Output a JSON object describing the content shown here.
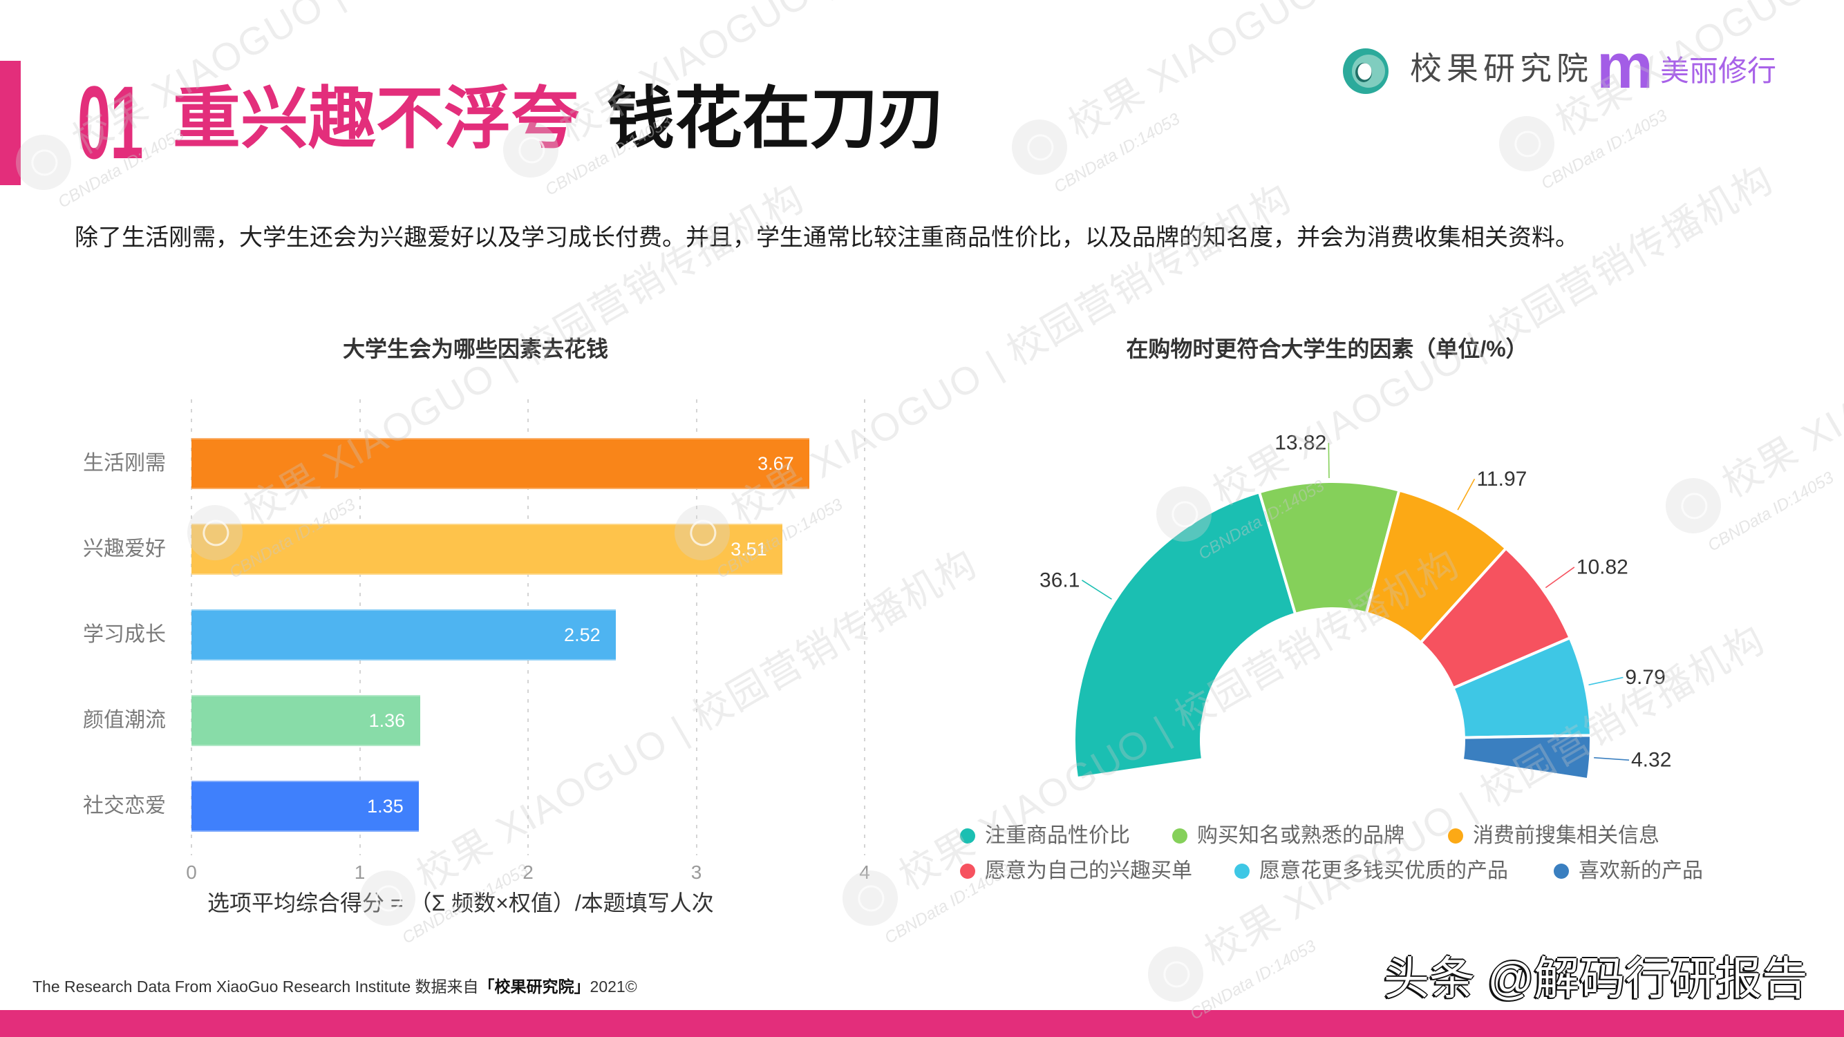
{
  "slide": {
    "section_number": "01",
    "title_highlight": "重兴趣不浮夸",
    "title_main": "钱花在刀刃",
    "description": "除了生活刚需，大学生还会为兴趣爱好以及学习成长付费。并且，学生通常比较注重商品性价比，以及品牌的知名度，并会为消费收集相关资料。"
  },
  "logo": {
    "icon": "xiaoguo-ring-logo-icon",
    "org_name": "校果研究院",
    "partner_mark": "m",
    "partner_name": "美丽修行"
  },
  "footer": {
    "source_prefix": "The Research Data From XiaoGuo Research Institute 数据来自",
    "source_org": "「校果研究院」",
    "source_suffix": "2021©",
    "platform_watermark": "头条 @解码行研报告"
  },
  "watermarks": {
    "brand_line": "校果 XIAOGUO | 校园营销传播机构",
    "id_text": "CBNData ID:14053"
  },
  "colors": {
    "accent_pink": "#E32E7B",
    "title_black": "#111111",
    "logo_teal": "#2BAA9B",
    "partner_purple": "#A35DE6"
  },
  "chart_data": [
    {
      "type": "bar",
      "orientation": "horizontal",
      "title": "大学生会为哪些因素去花钱",
      "categories": [
        "生活刚需",
        "兴趣爱好",
        "学习成长",
        "颜值潮流",
        "社交恋爱"
      ],
      "values": [
        3.67,
        3.51,
        2.52,
        1.36,
        1.35
      ],
      "colors": [
        "#F98519",
        "#FEC34B",
        "#4EB4F1",
        "#88DCA8",
        "#3F80FC"
      ],
      "xlabel": "",
      "ylabel": "",
      "xlim": [
        0,
        4
      ],
      "x_ticks": [
        0,
        1,
        2,
        3,
        4
      ],
      "grid": "vertical dashed",
      "data_labels": "inside-end",
      "legend": null,
      "note": "选项平均综合得分 = （Σ 频数×权值）/本题填写人次"
    },
    {
      "type": "pie",
      "variant": "donut (partial arc, opening at bottom)",
      "title": "在购物时更符合大学生的因素（单位/%）",
      "categories": [
        "注重商品性价比",
        "购买知名或熟悉的品牌",
        "消费前搜集相关信息",
        "愿意为自己的兴趣买单",
        "愿意花更多钱买优质的产品",
        "喜欢新的产品"
      ],
      "values": [
        36.1,
        13.82,
        11.97,
        10.82,
        9.79,
        4.32
      ],
      "colors": [
        "#1BBFB2",
        "#85D05A",
        "#FCA915",
        "#F6525F",
        "#3EC7E5",
        "#3A7FC0"
      ],
      "unit": "%",
      "legend_position": "bottom",
      "data_labels": "outside with leader lines",
      "start_angle_deg": 188.5,
      "sweep_deg": 197.3
    }
  ]
}
